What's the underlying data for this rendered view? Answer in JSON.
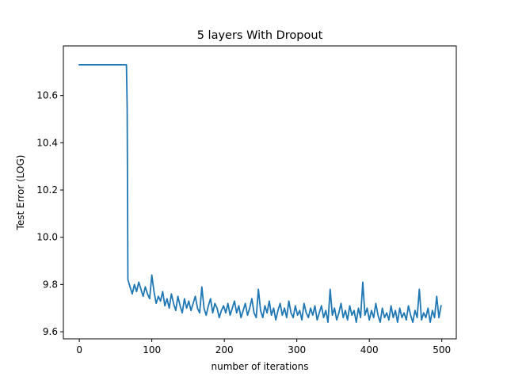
{
  "chart_data": {
    "type": "line",
    "title": "5 layers With Dropout",
    "xlabel": "number of iterations",
    "ylabel": "Test Error (LOG)",
    "xlim": [
      -22,
      520
    ],
    "ylim": [
      9.57,
      10.81
    ],
    "xticks": [
      0,
      100,
      200,
      300,
      400,
      500
    ],
    "yticks": [
      9.6,
      9.8,
      10.0,
      10.2,
      10.4,
      10.6
    ],
    "ytick_labels": [
      "9.6",
      "9.8",
      "10.0",
      "10.2",
      "10.4",
      "10.6"
    ],
    "grid": false,
    "series": [
      {
        "color": "#1f77b4",
        "x": [
          0,
          10,
          20,
          30,
          40,
          50,
          60,
          65,
          66,
          67,
          70,
          73,
          76,
          79,
          82,
          85,
          88,
          91,
          94,
          97,
          100,
          103,
          106,
          109,
          112,
          115,
          118,
          121,
          124,
          127,
          130,
          133,
          136,
          139,
          142,
          145,
          148,
          151,
          154,
          157,
          160,
          163,
          166,
          169,
          172,
          175,
          178,
          181,
          184,
          187,
          190,
          193,
          196,
          199,
          202,
          205,
          208,
          211,
          214,
          217,
          220,
          223,
          226,
          229,
          232,
          235,
          238,
          241,
          244,
          247,
          250,
          253,
          256,
          259,
          262,
          265,
          268,
          271,
          274,
          277,
          280,
          283,
          286,
          289,
          292,
          295,
          298,
          301,
          304,
          307,
          310,
          313,
          316,
          319,
          322,
          325,
          328,
          331,
          334,
          337,
          340,
          343,
          346,
          349,
          352,
          355,
          358,
          361,
          364,
          367,
          370,
          373,
          376,
          379,
          382,
          385,
          388,
          391,
          394,
          397,
          400,
          403,
          406,
          409,
          412,
          415,
          418,
          421,
          424,
          427,
          430,
          433,
          436,
          439,
          442,
          445,
          448,
          451,
          454,
          457,
          460,
          463,
          466,
          469,
          472,
          475,
          478,
          481,
          484,
          487,
          490,
          493,
          496,
          499
        ],
        "y": [
          10.73,
          10.73,
          10.73,
          10.73,
          10.73,
          10.73,
          10.73,
          10.73,
          10.55,
          9.82,
          9.79,
          9.76,
          9.8,
          9.77,
          9.81,
          9.78,
          9.75,
          9.79,
          9.76,
          9.74,
          9.84,
          9.77,
          9.72,
          9.75,
          9.73,
          9.77,
          9.71,
          9.74,
          9.7,
          9.76,
          9.72,
          9.69,
          9.75,
          9.71,
          9.68,
          9.74,
          9.7,
          9.73,
          9.69,
          9.72,
          9.75,
          9.7,
          9.68,
          9.79,
          9.7,
          9.67,
          9.71,
          9.74,
          9.68,
          9.72,
          9.7,
          9.66,
          9.69,
          9.71,
          9.68,
          9.72,
          9.67,
          9.7,
          9.73,
          9.68,
          9.71,
          9.66,
          9.69,
          9.72,
          9.67,
          9.7,
          9.74,
          9.68,
          9.66,
          9.78,
          9.69,
          9.66,
          9.71,
          9.68,
          9.73,
          9.67,
          9.7,
          9.65,
          9.69,
          9.72,
          9.67,
          9.7,
          9.66,
          9.73,
          9.68,
          9.66,
          9.71,
          9.67,
          9.69,
          9.65,
          9.72,
          9.68,
          9.66,
          9.7,
          9.67,
          9.71,
          9.65,
          9.68,
          9.71,
          9.66,
          9.69,
          9.64,
          9.78,
          9.67,
          9.7,
          9.65,
          9.68,
          9.72,
          9.66,
          9.69,
          9.65,
          9.71,
          9.67,
          9.69,
          9.64,
          9.7,
          9.66,
          9.81,
          9.67,
          9.7,
          9.65,
          9.69,
          9.66,
          9.72,
          9.67,
          9.64,
          9.7,
          9.66,
          9.68,
          9.65,
          9.71,
          9.66,
          9.69,
          9.64,
          9.7,
          9.66,
          9.68,
          9.65,
          9.71,
          9.67,
          9.64,
          9.69,
          9.66,
          9.78,
          9.65,
          9.68,
          9.66,
          9.7,
          9.64,
          9.69,
          9.66,
          9.75,
          9.66,
          9.71
        ]
      }
    ]
  }
}
